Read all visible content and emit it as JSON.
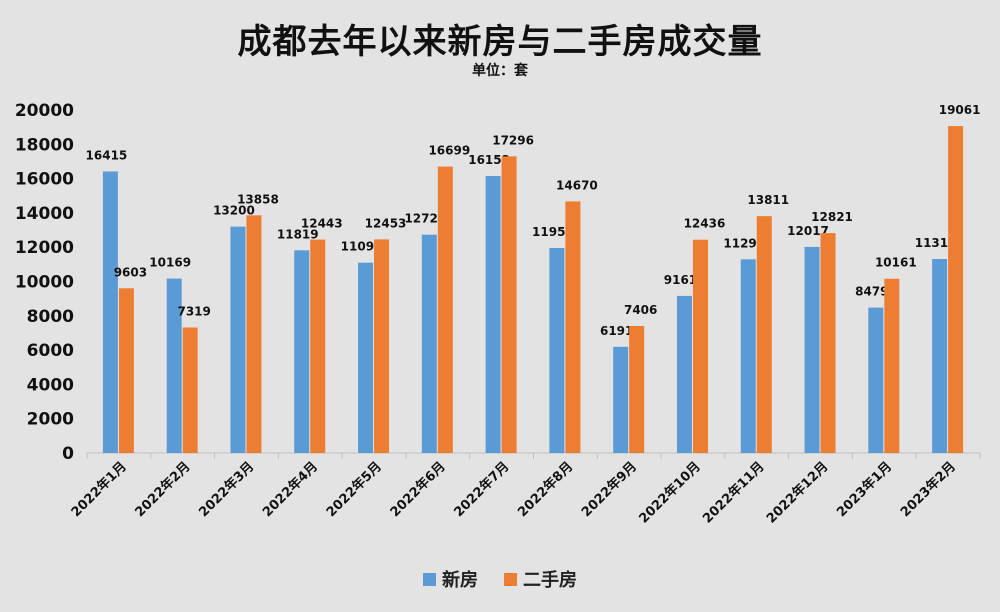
{
  "chart_data": {
    "type": "bar",
    "title": "成都去年以来新房与二手房成交量",
    "subtitle": "单位：套",
    "categories": [
      "2022年1月",
      "2022年2月",
      "2022年3月",
      "2022年4月",
      "2022年5月",
      "2022年6月",
      "2022年7月",
      "2022年8月",
      "2022年9月",
      "2022年10月",
      "2022年11月",
      "2022年12月",
      "2023年1月",
      "2023年2月"
    ],
    "series": [
      {
        "name": "新房",
        "color": "#5b9bd5",
        "values": [
          16415,
          10169,
          13200,
          11819,
          11096,
          12729,
          16153,
          11955,
          6191,
          9161,
          11294,
          12017,
          8479,
          11312
        ]
      },
      {
        "name": "二手房",
        "color": "#ed7d31",
        "values": [
          9603,
          7319,
          13858,
          12443,
          12453,
          16699,
          17296,
          14670,
          7406,
          12436,
          13811,
          12821,
          10161,
          19061
        ]
      }
    ],
    "ylim": [
      0,
      20000
    ],
    "yticks": [
      0,
      2000,
      4000,
      6000,
      8000,
      10000,
      12000,
      14000,
      16000,
      18000,
      20000
    ],
    "xlabel": "",
    "ylabel": "",
    "grid": false,
    "legend_position": "bottom",
    "data_labels": true
  }
}
